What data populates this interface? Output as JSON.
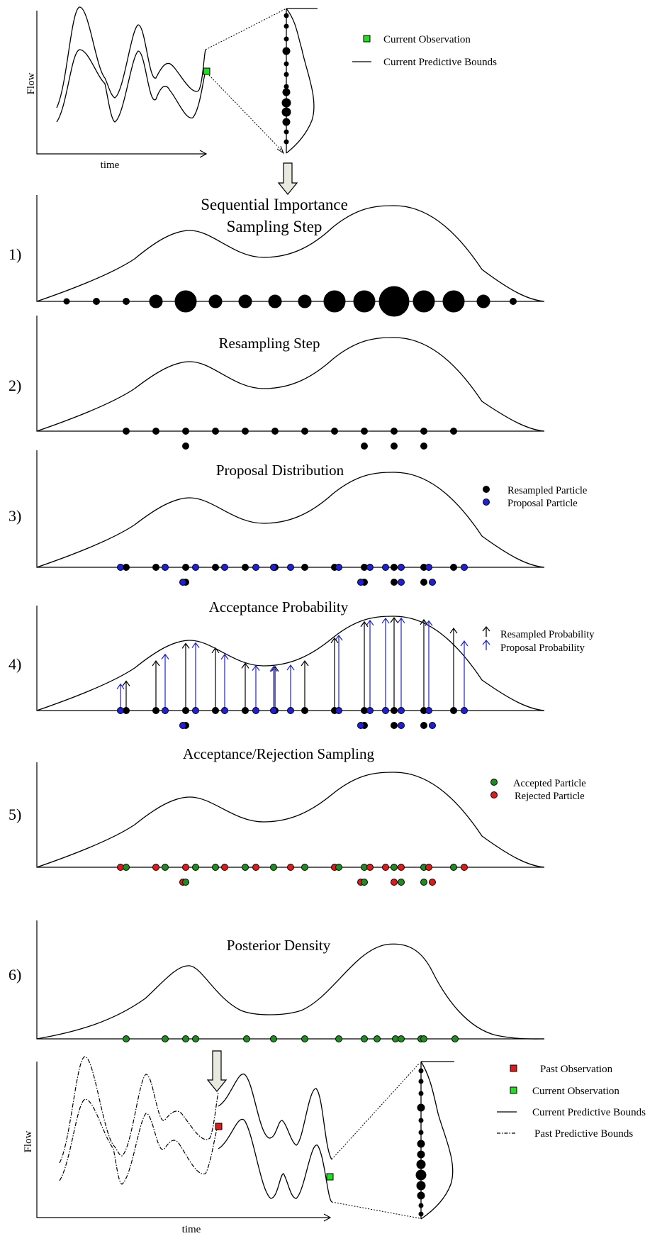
{
  "top": {
    "ylabel": "Flow",
    "xlabel": "time",
    "legend": [
      {
        "label": "Current Observation",
        "symbol": "green-square"
      },
      {
        "label": "Current Predictive Bounds",
        "symbol": "line"
      }
    ]
  },
  "steps": [
    {
      "number": "1)",
      "title_lines": [
        "Sequential Importance",
        "Sampling Step"
      ]
    },
    {
      "number": "2)",
      "title_lines": [
        "Resampling Step"
      ]
    },
    {
      "number": "3)",
      "title_lines": [
        "Proposal Distribution"
      ],
      "legend": [
        {
          "label": "Resampled Particle",
          "color": "#000000"
        },
        {
          "label": "Proposal Particle",
          "color": "#1f1fd6"
        }
      ]
    },
    {
      "number": "4)",
      "title_lines": [
        "Acceptance Probability"
      ],
      "legend": [
        {
          "label": "Resampled Probability",
          "color": "#000000"
        },
        {
          "label": "Proposal Probability",
          "color": "#1f1fd6"
        }
      ]
    },
    {
      "number": "5)",
      "title_lines": [
        "Acceptance/Rejection Sampling"
      ],
      "legend": [
        {
          "label": "Accepted Particle",
          "color": "#1e8c1e"
        },
        {
          "label": "Rejected Particle",
          "color": "#e01919"
        }
      ]
    },
    {
      "number": "6)",
      "title_lines": [
        "Posterior Density"
      ]
    }
  ],
  "bottom": {
    "ylabel": "Flow",
    "xlabel": "time",
    "legend": [
      {
        "label": "Past Observation",
        "symbol": "red-square"
      },
      {
        "label": "Current Observation",
        "symbol": "green-square"
      },
      {
        "label": "Current Predictive Bounds",
        "symbol": "line"
      },
      {
        "label": "Past Predictive Bounds",
        "symbol": "dashdot"
      }
    ]
  },
  "colors": {
    "resampled": "#000000",
    "proposal": "#1f1fd6",
    "accepted": "#1e8c1e",
    "rejected": "#e01919",
    "current_observation": "#22dd22",
    "past_observation": "#e01919",
    "arrow_fill": "#e8eadf"
  }
}
